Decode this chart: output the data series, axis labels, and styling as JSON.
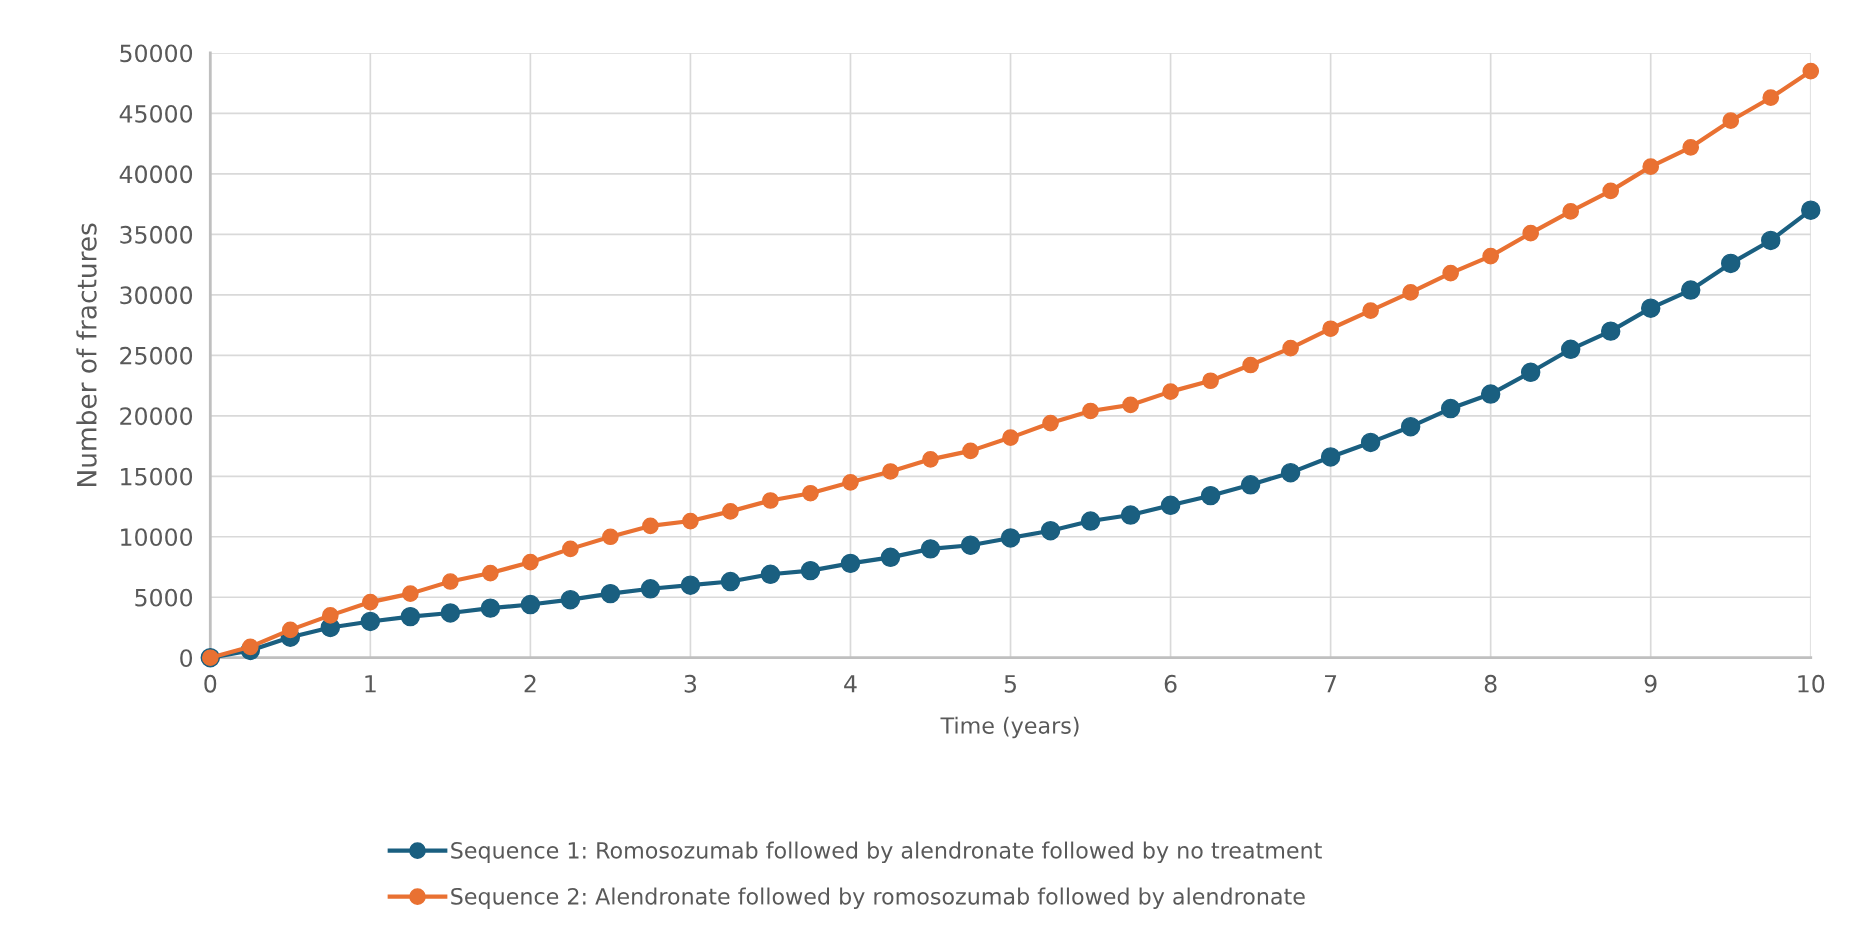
{
  "chart_data": {
    "type": "line",
    "xlabel": "Time (years)",
    "ylabel": "Number of fractures",
    "x": [
      0,
      0.25,
      0.5,
      0.75,
      1,
      1.25,
      1.5,
      1.75,
      2,
      2.25,
      2.5,
      2.75,
      3,
      3.25,
      3.5,
      3.75,
      4,
      4.25,
      4.5,
      4.75,
      5,
      5.25,
      5.5,
      5.75,
      6,
      6.25,
      6.5,
      6.75,
      7,
      7.25,
      7.5,
      7.75,
      8,
      8.25,
      8.5,
      8.75,
      9,
      9.25,
      9.5,
      9.75,
      10
    ],
    "series": [
      {
        "name": "Sequence 1: Romosozumab followed by alendronate followed by no treatment",
        "color": "#1a5f80",
        "values": [
          0,
          600,
          1700,
          2500,
          3000,
          3400,
          3700,
          4100,
          4400,
          4800,
          5300,
          5700,
          6000,
          6300,
          6900,
          7200,
          7800,
          8300,
          9000,
          9300,
          9900,
          10500,
          11300,
          11800,
          12600,
          13400,
          14300,
          15300,
          16600,
          17800,
          19100,
          20600,
          21800,
          23600,
          25500,
          27000,
          28900,
          30400,
          32600,
          34500,
          37000
        ]
      },
      {
        "name": "Sequence 2: Alendronate followed by romosozumab followed by alendronate",
        "color": "#e97132",
        "values": [
          0,
          900,
          2300,
          3500,
          4600,
          5300,
          6300,
          7000,
          7900,
          9000,
          10000,
          10900,
          11300,
          12100,
          13000,
          13600,
          14500,
          15400,
          16400,
          17100,
          18200,
          19400,
          20400,
          20900,
          22000,
          22900,
          24200,
          25600,
          27200,
          28700,
          30200,
          31800,
          33200,
          35100,
          36900,
          38600,
          40600,
          42200,
          44400,
          46300,
          48500
        ]
      }
    ],
    "xlim": [
      0,
      10
    ],
    "xticks": [
      0,
      1,
      2,
      3,
      4,
      5,
      6,
      7,
      8,
      9,
      10
    ],
    "ylim": [
      0,
      50000
    ],
    "yticks": [
      0,
      5000,
      10000,
      15000,
      20000,
      25000,
      30000,
      35000,
      40000,
      45000,
      50000
    ],
    "grid": true,
    "legend": "bottom",
    "marker": "circle",
    "line_style": "solid"
  }
}
